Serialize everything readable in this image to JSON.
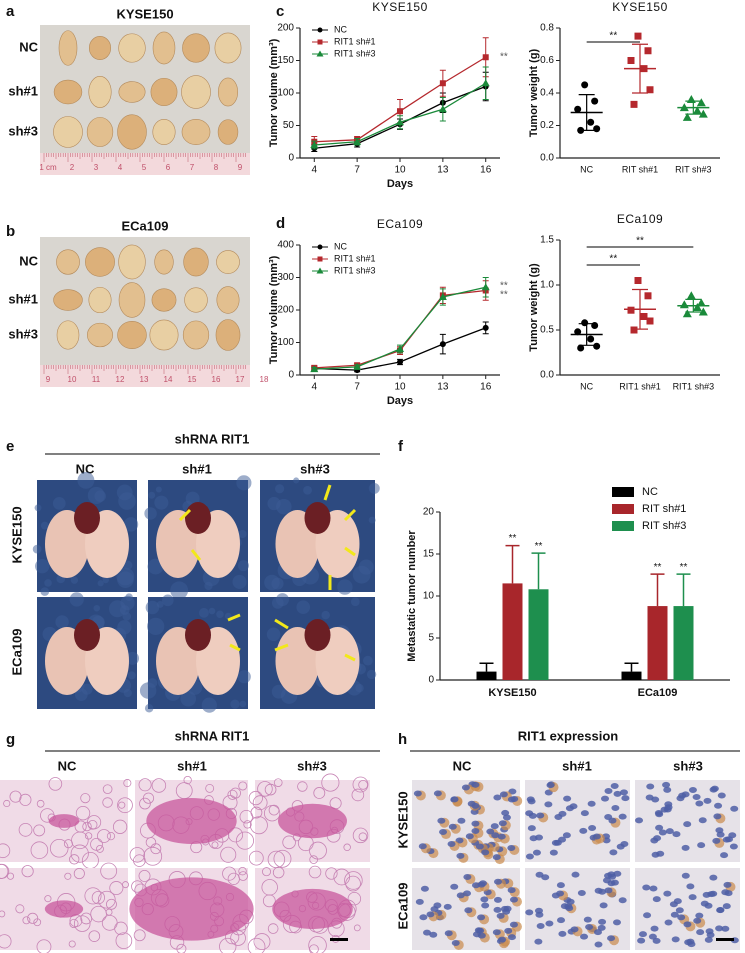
{
  "panel_labels": [
    "a",
    "b",
    "c",
    "d",
    "e",
    "f",
    "g",
    "h"
  ],
  "panel_a": {
    "title": "KYSE150",
    "rows": [
      "NC",
      "sh#1",
      "sh#3"
    ],
    "ruler": [
      "1 cm",
      "2",
      "3",
      "4",
      "5",
      "6",
      "7",
      "8",
      "9"
    ]
  },
  "panel_b": {
    "title": "ECa109",
    "rows": [
      "NC",
      "sh#1",
      "sh#3"
    ],
    "ruler": [
      "9",
      "10",
      "11",
      "12",
      "13",
      "14",
      "15",
      "16",
      "17",
      "18"
    ]
  },
  "panel_e": {
    "title": "shRNA RIT1",
    "columns": [
      "NC",
      "sh#1",
      "sh#3"
    ],
    "rows": [
      "KYSE150",
      "ECa109"
    ]
  },
  "panel_g": {
    "title": "shRNA RIT1",
    "columns": [
      "NC",
      "sh#1",
      "sh#3"
    ],
    "rows": [
      "KYSE150",
      "ECa109"
    ]
  },
  "panel_h": {
    "title": "RIT1 expression",
    "columns": [
      "NC",
      "sh#1",
      "sh#3"
    ],
    "rows": [
      "KYSE150",
      "ECa109"
    ]
  },
  "chart_data": [
    {
      "type": "line",
      "title": "KYSE150",
      "xlabel": "Days",
      "ylabel": "Tumor volume (mm³)",
      "x": [
        4,
        7,
        10,
        13,
        16
      ],
      "xlim": [
        3,
        17
      ],
      "xticks": [
        4,
        7,
        10,
        13,
        16
      ],
      "ylim": [
        0,
        200
      ],
      "yticks": [
        0,
        50,
        100,
        150,
        200
      ],
      "legend": "upper left",
      "series": [
        {
          "name": "NC",
          "color": "#000000",
          "marker": "circle",
          "values": [
            15,
            22,
            52,
            85,
            110
          ],
          "errors": [
            5,
            5,
            8,
            15,
            22
          ]
        },
        {
          "name": "RIT1 sh#1",
          "color": "#b5282d",
          "marker": "square",
          "values": [
            25,
            28,
            72,
            115,
            155
          ],
          "errors": [
            8,
            5,
            18,
            20,
            30
          ]
        },
        {
          "name": "RIT1 sh#3",
          "color": "#1a8a3a",
          "marker": "triangle",
          "values": [
            20,
            25,
            55,
            75,
            115
          ],
          "errors": [
            6,
            5,
            10,
            18,
            25
          ]
        }
      ],
      "annotations": [
        "**"
      ]
    },
    {
      "type": "strip",
      "title": "KYSE150",
      "ylabel": "Tumor weight (g)",
      "categories": [
        "NC",
        "RIT sh#1",
        "RIT sh#3"
      ],
      "ylim": [
        0,
        0.8
      ],
      "yticks": [
        {
          "value": 0,
          "label": "0.0"
        },
        {
          "value": 0.2,
          "label": "0.2"
        },
        {
          "value": 0.4,
          "label": "0.4"
        },
        {
          "value": 0.6,
          "label": "0.6"
        },
        {
          "value": 0.8,
          "label": "0.8"
        }
      ],
      "groups": [
        {
          "color": "#000000",
          "marker": "circle",
          "values": [
            0.45,
            0.35,
            0.3,
            0.22,
            0.18,
            0.17
          ],
          "mean": 0.28,
          "sd": 0.11
        },
        {
          "color": "#b5282d",
          "marker": "square",
          "values": [
            0.75,
            0.66,
            0.6,
            0.55,
            0.42,
            0.33
          ],
          "mean": 0.55,
          "sd": 0.15
        },
        {
          "color": "#1a8a3a",
          "marker": "triangle",
          "values": [
            0.36,
            0.34,
            0.31,
            0.29,
            0.27,
            0.25
          ],
          "mean": 0.31,
          "sd": 0.04
        }
      ],
      "annotations": [
        "**"
      ]
    },
    {
      "type": "line",
      "title": "ECa109",
      "xlabel": "Days",
      "ylabel": "Tumor volume (mm³)",
      "x": [
        4,
        7,
        10,
        13,
        16
      ],
      "xlim": [
        3,
        17
      ],
      "xticks": [
        4,
        7,
        10,
        13,
        16
      ],
      "ylim": [
        0,
        400
      ],
      "yticks": [
        0,
        100,
        200,
        300,
        400
      ],
      "legend": "upper left",
      "series": [
        {
          "name": "NC",
          "color": "#000000",
          "marker": "circle",
          "values": [
            20,
            15,
            40,
            95,
            145
          ],
          "errors": [
            5,
            5,
            8,
            30,
            18
          ]
        },
        {
          "name": "RIT1 sh#1",
          "color": "#b5282d",
          "marker": "square",
          "values": [
            22,
            30,
            75,
            245,
            260
          ],
          "errors": [
            6,
            6,
            12,
            25,
            30
          ]
        },
        {
          "name": "RIT1 sh#3",
          "color": "#1a8a3a",
          "marker": "triangle",
          "values": [
            18,
            25,
            80,
            240,
            270
          ],
          "errors": [
            5,
            6,
            12,
            25,
            30
          ]
        }
      ],
      "annotations": [
        "**",
        "**"
      ]
    },
    {
      "type": "strip",
      "title": "ECa109",
      "ylabel": "Tumor weight (g)",
      "categories": [
        "NC",
        "RIT1 sh#1",
        "RIT1 sh#3"
      ],
      "ylim": [
        0,
        1.5
      ],
      "yticks": [
        {
          "value": 0,
          "label": "0.0"
        },
        {
          "value": 0.5,
          "label": "0.5"
        },
        {
          "value": 1,
          "label": "1.0"
        },
        {
          "value": 1.5,
          "label": "1.5"
        }
      ],
      "groups": [
        {
          "color": "#000000",
          "marker": "circle",
          "values": [
            0.58,
            0.55,
            0.48,
            0.4,
            0.32,
            0.3
          ],
          "mean": 0.45,
          "sd": 0.12
        },
        {
          "color": "#b5282d",
          "marker": "square",
          "values": [
            1.05,
            0.88,
            0.72,
            0.65,
            0.6,
            0.5
          ],
          "mean": 0.73,
          "sd": 0.22
        },
        {
          "color": "#1a8a3a",
          "marker": "triangle",
          "values": [
            0.88,
            0.8,
            0.78,
            0.75,
            0.7,
            0.68
          ],
          "mean": 0.77,
          "sd": 0.07
        }
      ],
      "annotations": [
        "**",
        "**"
      ]
    },
    {
      "type": "bar",
      "ylabel": "Metastatic tumor number",
      "categories": [
        "KYSE150",
        "ECa109"
      ],
      "ylim": [
        0,
        20
      ],
      "yticks": [
        0,
        5,
        10,
        15,
        20
      ],
      "legend": "upper right",
      "series": [
        {
          "name": "NC",
          "color": "#000000",
          "values": [
            1,
            1
          ],
          "errors": [
            1,
            1
          ]
        },
        {
          "name": "RIT sh#1",
          "color": "#a8262b",
          "values": [
            11.5,
            8.8
          ],
          "errors": [
            4.5,
            3.8
          ],
          "annotations": [
            "**",
            "**"
          ]
        },
        {
          "name": "RIT sh#3",
          "color": "#1e8f4e",
          "values": [
            10.8,
            8.8
          ],
          "errors": [
            4.3,
            3.8
          ],
          "annotations": [
            "**",
            "**"
          ]
        }
      ]
    }
  ]
}
